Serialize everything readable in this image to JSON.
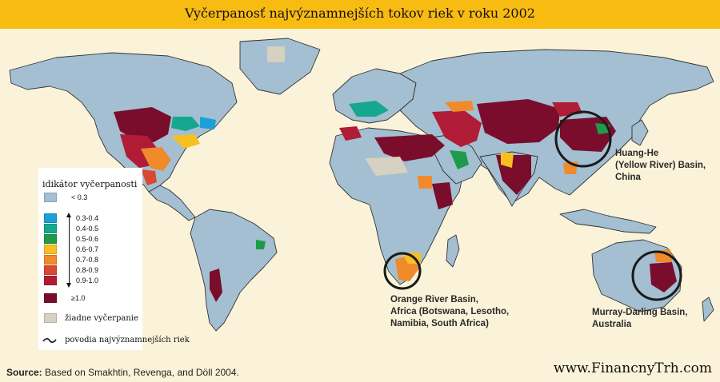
{
  "title": "Vyčerpanosť najvýznamnejších tokov riek v roku 2002",
  "legend": {
    "title": "idikátor vyčerpanosti",
    "items": [
      {
        "label": "< 0.3",
        "color": "#a3bfd1"
      },
      {
        "label": "0.3-0.4",
        "color": "#1aa1d9"
      },
      {
        "label": "0.4-0.5",
        "color": "#16a88f"
      },
      {
        "label": "0.5-0.6",
        "color": "#1e9a4a"
      },
      {
        "label": "0.6-0.7",
        "color": "#f6c022"
      },
      {
        "label": "0.7-0.8",
        "color": "#f08a2a"
      },
      {
        "label": "0.8-0.9",
        "color": "#d94830"
      },
      {
        "label": "0.9-1.0",
        "color": "#b01c36"
      },
      {
        "label": "≥1.0",
        "color": "#7a0d2c"
      },
      {
        "label": "žiadne vyčerpanie",
        "color": "#d6d1c0"
      }
    ],
    "basin_label": "povodia najvýznamnejších riek"
  },
  "callouts": {
    "huang": [
      "Huang-He",
      "(Yellow River) Basin,",
      "China"
    ],
    "orange": [
      "Orange River Basin,",
      "Africa (Botswana, Lesotho,",
      "Namibia, South Africa)"
    ],
    "murray": [
      "Murray-Darling Basin,",
      "Australia"
    ]
  },
  "source": {
    "prefix": "Source:",
    "text": "Based on Smakhtin, Revenga, and Döll 2004."
  },
  "watermark": "www.FinancnyTrh.com"
}
